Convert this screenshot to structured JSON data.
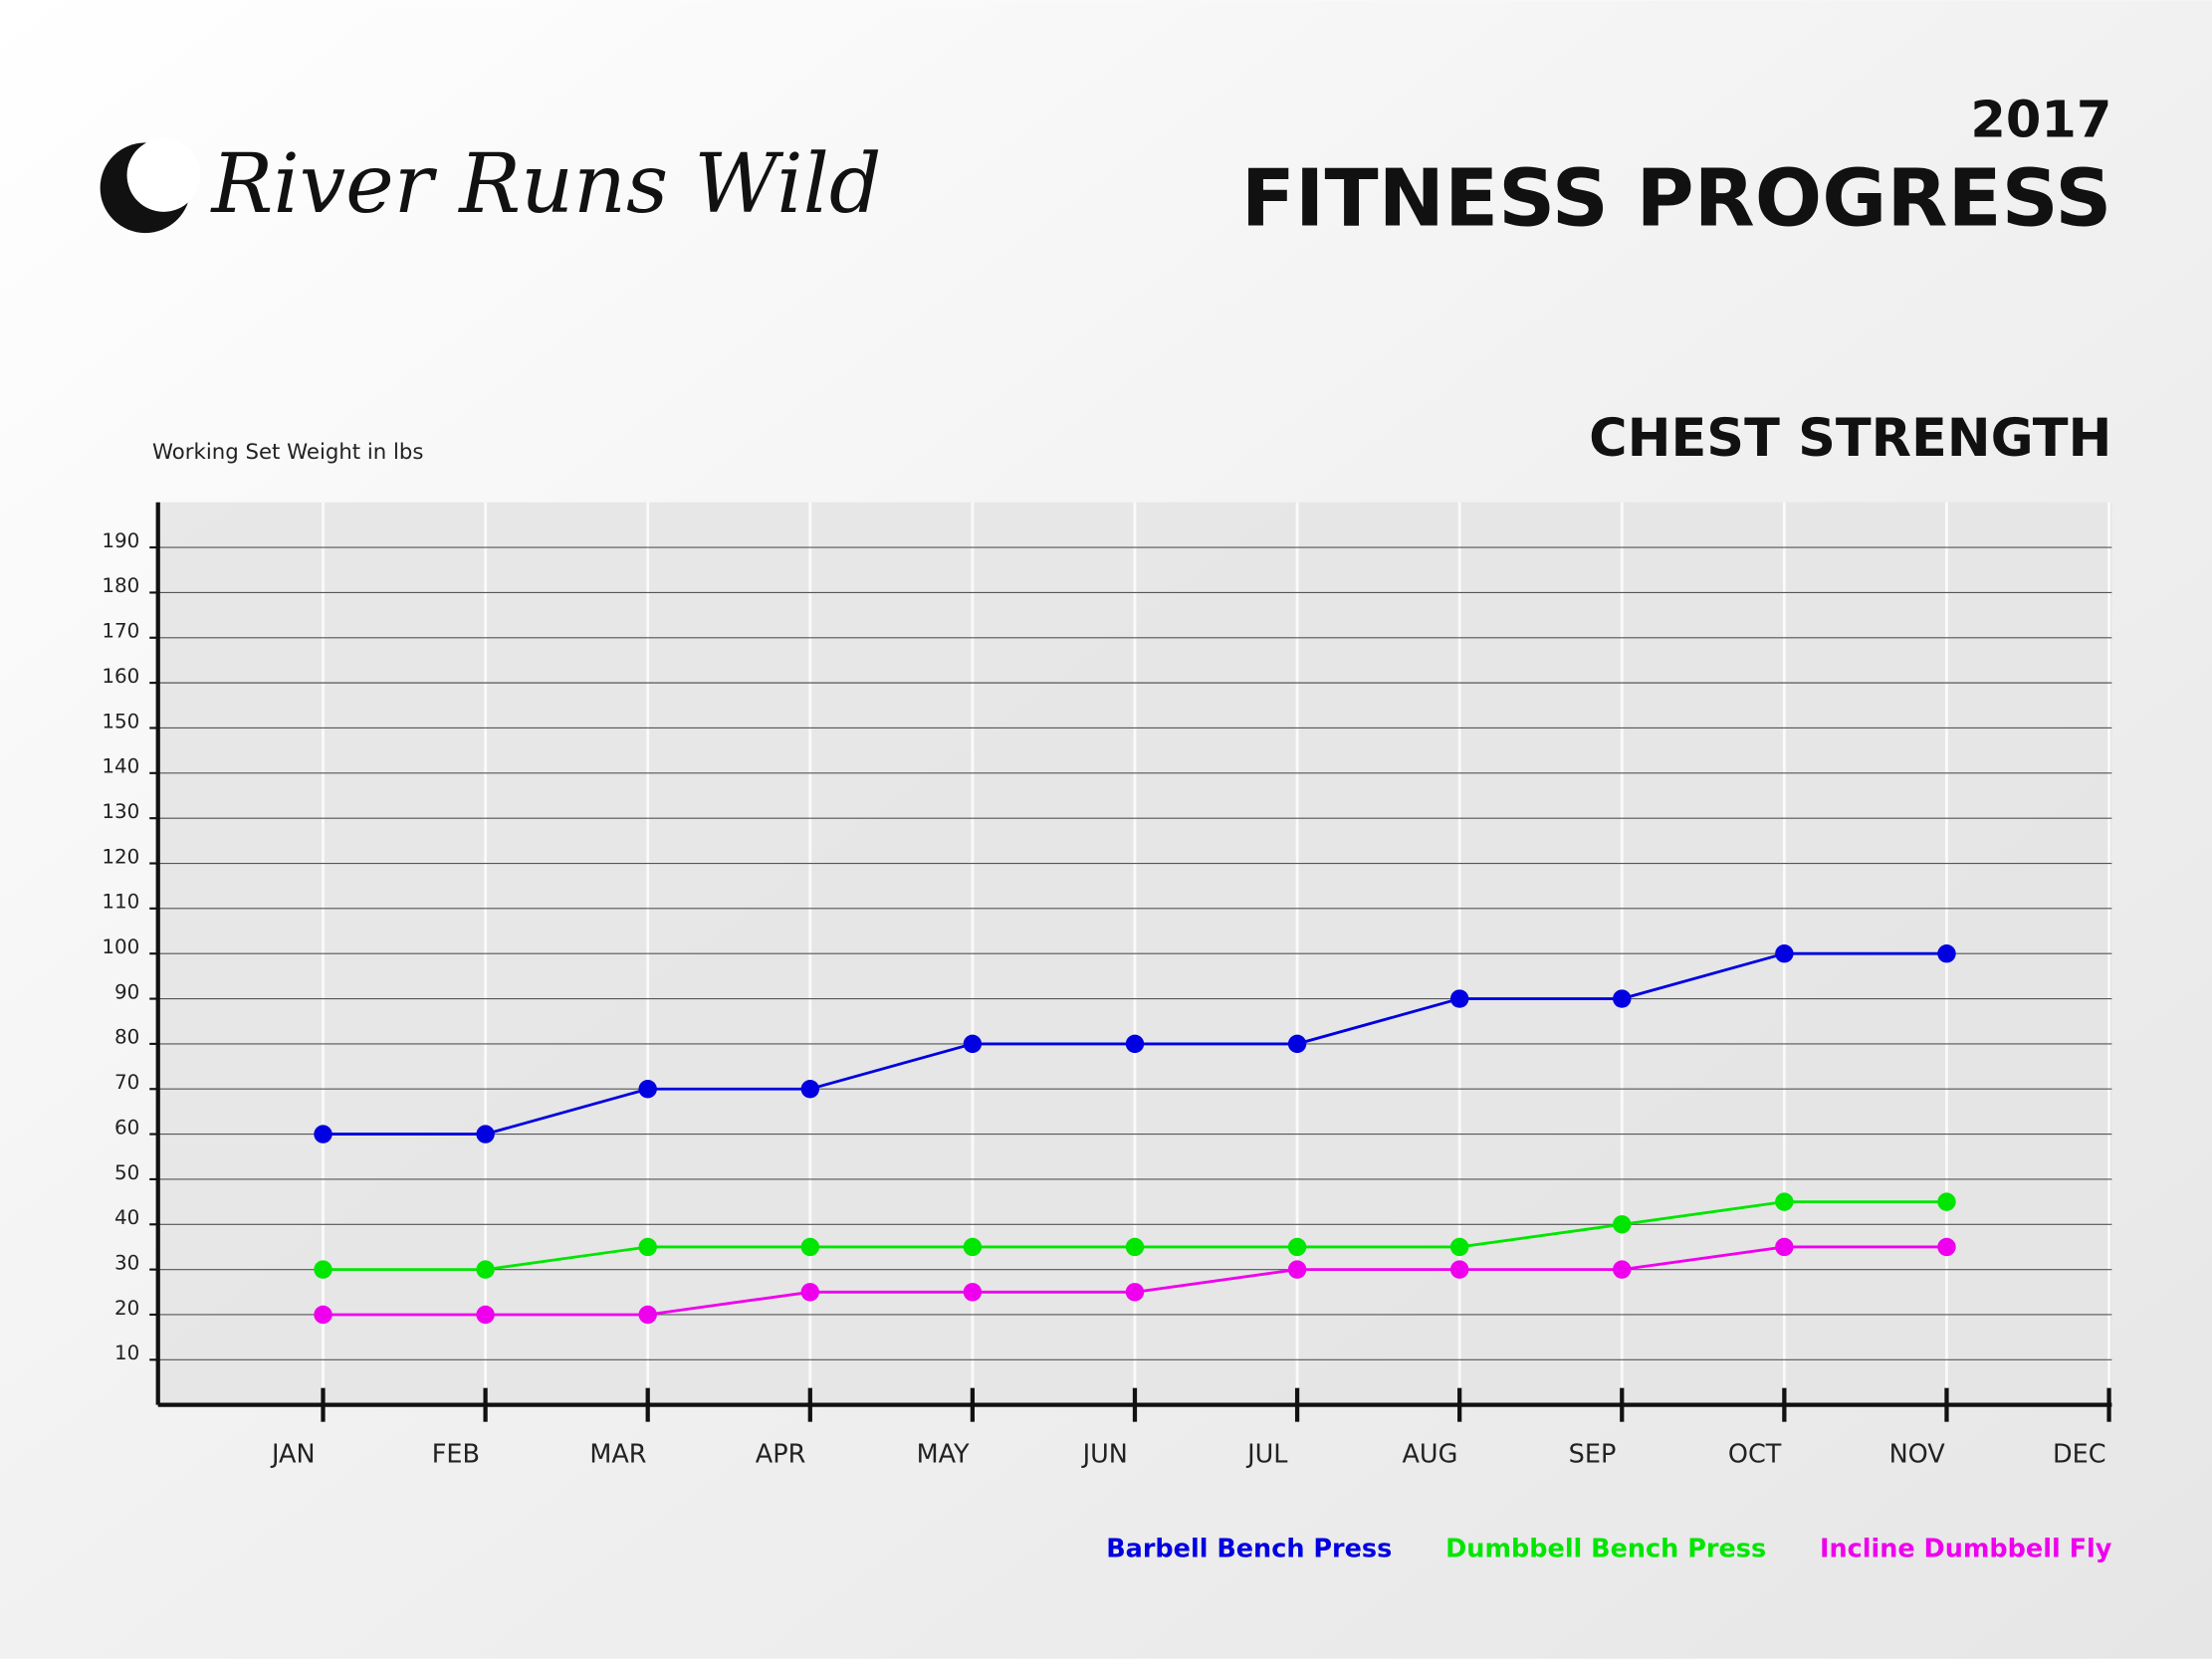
{
  "chart_data": {
    "type": "line",
    "logo": "River Runs Wild",
    "year": "2017",
    "title": "FITNESS PROGRESS",
    "subtitle": "CHEST STRENGTH",
    "y_label": "Working Set Weight in lbs",
    "categories": [
      "JAN",
      "FEB",
      "MAR",
      "APR",
      "MAY",
      "JUN",
      "JUL",
      "AUG",
      "SEP",
      "OCT",
      "NOV",
      "DEC"
    ],
    "series": [
      {
        "name": "Barbell Bench Press",
        "color": "#0000e0",
        "values": [
          60,
          60,
          70,
          70,
          80,
          80,
          80,
          90,
          90,
          100,
          100,
          null
        ]
      },
      {
        "name": "Dumbbell Bench Press",
        "color": "#00e600",
        "values": [
          30,
          30,
          35,
          35,
          35,
          35,
          35,
          35,
          40,
          45,
          45,
          null
        ]
      },
      {
        "name": "Incline Dumbbell Fly",
        "color": "#ee00ee",
        "values": [
          20,
          20,
          20,
          25,
          25,
          25,
          30,
          30,
          30,
          35,
          35,
          null
        ]
      }
    ],
    "ylim": [
      0,
      200
    ],
    "yticks": [
      10,
      20,
      30,
      40,
      50,
      60,
      70,
      80,
      90,
      100,
      110,
      120,
      130,
      140,
      150,
      160,
      170,
      180,
      190
    ],
    "grid": true,
    "legend": "bottom-right"
  }
}
